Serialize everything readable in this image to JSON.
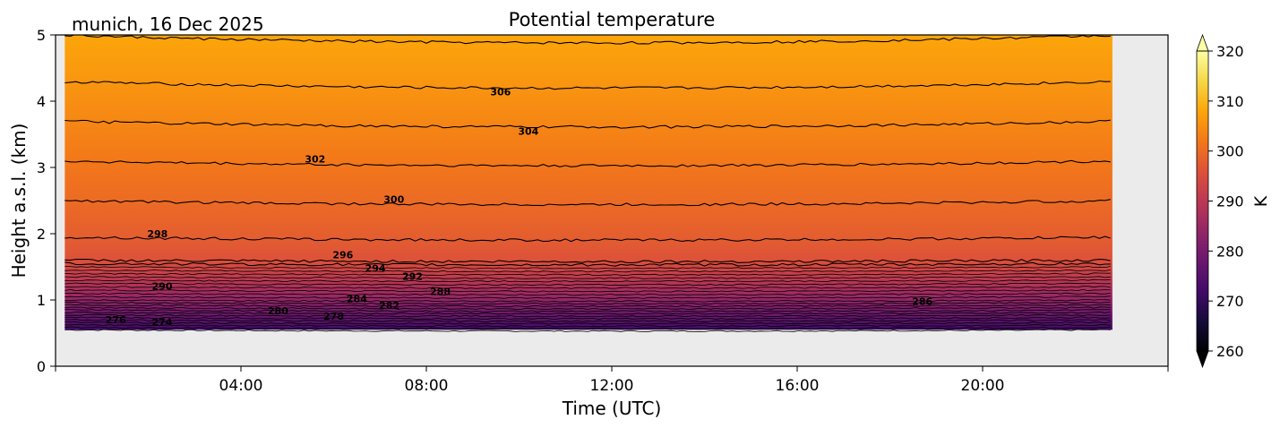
{
  "chart_data": {
    "type": "heatmap",
    "title": "Potential temperature",
    "subtitle": "munich, 16 Dec 2025",
    "xlabel": "Time (UTC)",
    "ylabel": "Height a.s.l. (km)",
    "xlim_hours": [
      0,
      24
    ],
    "ylim_km": [
      0,
      5
    ],
    "x_ticks": [
      "04:00",
      "08:00",
      "12:00",
      "16:00",
      "20:00"
    ],
    "x_tick_hours": [
      4,
      8,
      12,
      16,
      20
    ],
    "y_ticks": [
      "0",
      "1",
      "2",
      "3",
      "4",
      "5"
    ],
    "y_tick_values": [
      0,
      1,
      2,
      3,
      4,
      5
    ],
    "data_extent": {
      "time_hours": [
        0.2,
        22.8
      ],
      "height_km": [
        0.55,
        5.0
      ]
    },
    "colorbar": {
      "label": "K",
      "range": [
        260,
        320
      ],
      "ticks": [
        "260",
        "270",
        "280",
        "290",
        "300",
        "310",
        "320"
      ],
      "tick_values": [
        260,
        270,
        280,
        290,
        300,
        310,
        320
      ],
      "colormap": "inferno",
      "extend": "both"
    },
    "profile": {
      "heights_km": [
        0.55,
        0.7,
        0.85,
        1.0,
        1.2,
        1.4,
        1.6,
        1.95,
        2.5,
        3.1,
        3.7,
        4.3,
        5.0
      ],
      "theta_K": [
        272,
        276,
        280,
        284,
        288,
        292,
        296,
        298,
        300,
        302,
        304,
        306,
        308
      ]
    },
    "contour_levels_K": [
      296,
      298,
      300,
      302,
      304,
      306,
      308
    ],
    "contour_labels": [
      {
        "text": "276",
        "time_h": 1.3,
        "height_km": 0.7
      },
      {
        "text": "274",
        "time_h": 2.3,
        "height_km": 0.67
      },
      {
        "text": "280",
        "time_h": 4.8,
        "height_km": 0.84
      },
      {
        "text": "278",
        "time_h": 6.0,
        "height_km": 0.76
      },
      {
        "text": "284",
        "time_h": 6.5,
        "height_km": 1.02
      },
      {
        "text": "282",
        "time_h": 7.2,
        "height_km": 0.92
      },
      {
        "text": "290",
        "time_h": 2.3,
        "height_km": 1.21
      },
      {
        "text": "288",
        "time_h": 8.3,
        "height_km": 1.13
      },
      {
        "text": "292",
        "time_h": 7.7,
        "height_km": 1.36
      },
      {
        "text": "294",
        "time_h": 6.9,
        "height_km": 1.48
      },
      {
        "text": "296",
        "time_h": 6.2,
        "height_km": 1.68
      },
      {
        "text": "298",
        "time_h": 2.2,
        "height_km": 2.0
      },
      {
        "text": "300",
        "time_h": 7.3,
        "height_km": 2.52
      },
      {
        "text": "302",
        "time_h": 5.6,
        "height_km": 3.13
      },
      {
        "text": "304",
        "time_h": 10.2,
        "height_km": 3.55
      },
      {
        "text": "306",
        "time_h": 9.6,
        "height_km": 4.14
      },
      {
        "text": "286",
        "time_h": 18.7,
        "height_km": 0.98
      }
    ]
  },
  "colors": {
    "missing_background": "#ebebeb"
  }
}
